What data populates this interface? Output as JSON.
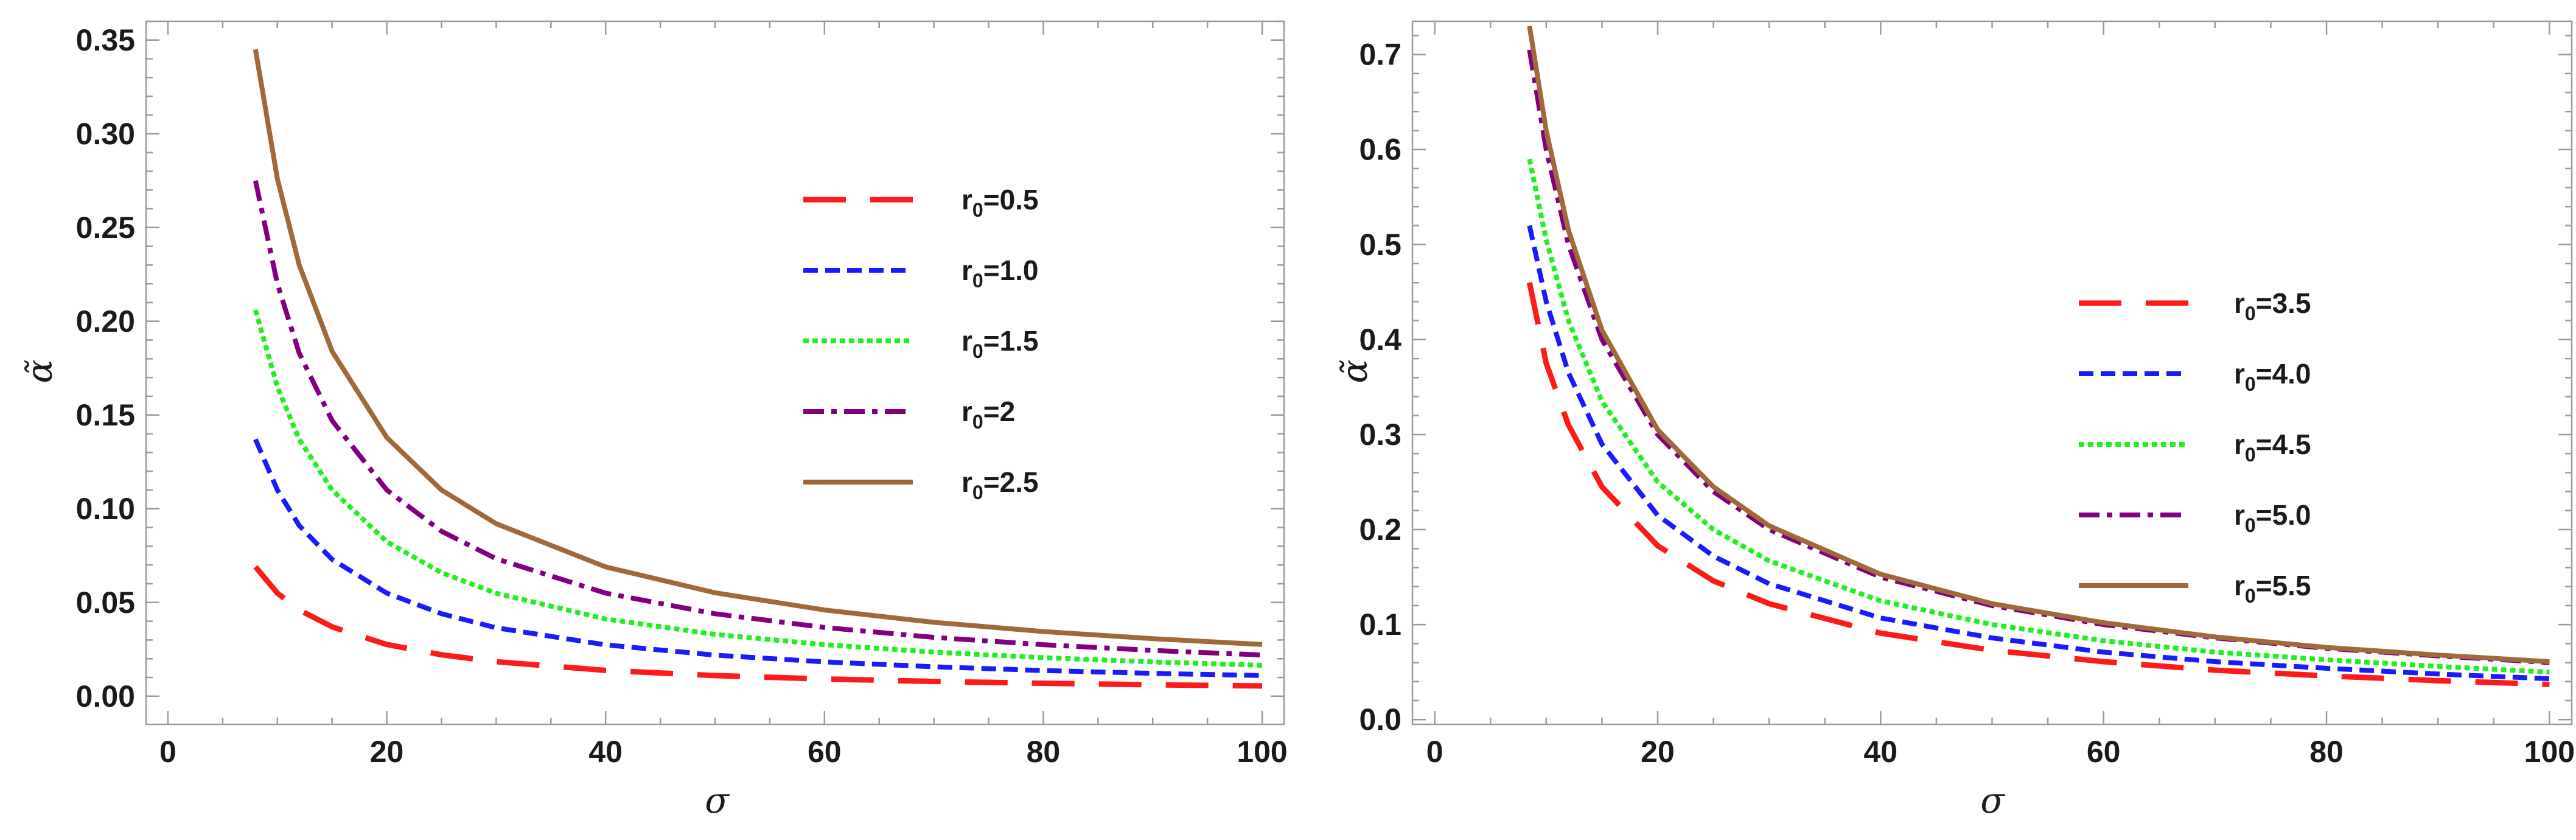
{
  "chart_data": [
    {
      "type": "line",
      "xlabel": "σ",
      "ylabel": "α̃",
      "xlim": [
        -2,
        102
      ],
      "ylim": [
        -0.015,
        0.36
      ],
      "xticks": [
        0,
        20,
        40,
        60,
        80,
        100
      ],
      "xtick_labels": [
        "0",
        "20",
        "40",
        "60",
        "80",
        "100"
      ],
      "yticks": [
        0,
        0.05,
        0.1,
        0.15,
        0.2,
        0.25,
        0.3,
        0.35
      ],
      "ytick_labels": [
        "0.00",
        "0.05",
        "0.10",
        "0.15",
        "0.20",
        "0.25",
        "0.30",
        "0.35"
      ],
      "grid": false,
      "legend_position": "upper-right",
      "x": [
        8,
        10,
        12,
        15,
        20,
        25,
        30,
        40,
        50,
        60,
        70,
        80,
        90,
        100
      ],
      "series": [
        {
          "name_base": "r",
          "name_sub": "0",
          "name_tail": "=0.5",
          "color": "#ff1a1a",
          "dash": "long-dash",
          "values": [
            0.069,
            0.055,
            0.046,
            0.037,
            0.0276,
            0.0221,
            0.0184,
            0.0138,
            0.011,
            0.0092,
            0.0079,
            0.0069,
            0.0061,
            0.0055
          ]
        },
        {
          "name_base": "r",
          "name_sub": "0",
          "name_tail": "=1.0",
          "color": "#1a1aff",
          "dash": "short-dash",
          "values": [
            0.137,
            0.11,
            0.091,
            0.073,
            0.055,
            0.044,
            0.0365,
            0.0274,
            0.0219,
            0.0183,
            0.0157,
            0.0137,
            0.0122,
            0.011
          ]
        },
        {
          "name_base": "r",
          "name_sub": "0",
          "name_tail": "=1.5",
          "color": "#22ee22",
          "dash": "dotted",
          "values": [
            0.206,
            0.165,
            0.137,
            0.11,
            0.0824,
            0.0659,
            0.0549,
            0.0412,
            0.033,
            0.0275,
            0.0235,
            0.0206,
            0.0183,
            0.0165
          ]
        },
        {
          "name_base": "r",
          "name_sub": "0",
          "name_tail": "=2",
          "color": "#800080",
          "dash": "dash-dot",
          "values": [
            0.275,
            0.22,
            0.183,
            0.147,
            0.11,
            0.088,
            0.0733,
            0.055,
            0.044,
            0.0367,
            0.0314,
            0.0275,
            0.0244,
            0.022
          ]
        },
        {
          "name_base": "r",
          "name_sub": "0",
          "name_tail": "=2.5",
          "color": "#a0693a",
          "dash": "solid",
          "values": [
            0.345,
            0.276,
            0.23,
            0.184,
            0.138,
            0.11,
            0.092,
            0.069,
            0.0552,
            0.046,
            0.0394,
            0.0345,
            0.0307,
            0.0276
          ]
        }
      ]
    },
    {
      "type": "line",
      "xlabel": "σ",
      "ylabel": "α̃",
      "xlim": [
        -2,
        102
      ],
      "ylim": [
        -0.005,
        0.735
      ],
      "xticks": [
        0,
        20,
        40,
        60,
        80,
        100
      ],
      "xtick_labels": [
        "0",
        "20",
        "40",
        "60",
        "80",
        "100"
      ],
      "yticks": [
        0,
        0.1,
        0.2,
        0.3,
        0.4,
        0.5,
        0.6,
        0.7
      ],
      "ytick_labels": [
        "0.0",
        "0.1",
        "0.2",
        "0.3",
        "0.4",
        "0.5",
        "0.6",
        "0.7"
      ],
      "grid": false,
      "legend_position": "right",
      "x": [
        8.5,
        10,
        12,
        15,
        20,
        25,
        30,
        40,
        50,
        60,
        70,
        80,
        90,
        100
      ],
      "series": [
        {
          "name_base": "r",
          "name_sub": "0",
          "name_tail": "=3.5",
          "color": "#ff1a1a",
          "dash": "long-dash",
          "values": [
            0.46,
            0.375,
            0.31,
            0.245,
            0.183,
            0.146,
            0.122,
            0.091,
            0.073,
            0.061,
            0.052,
            0.046,
            0.041,
            0.037
          ]
        },
        {
          "name_base": "r",
          "name_sub": "0",
          "name_tail": "=4.0",
          "color": "#1a1aff",
          "dash": "short-dash",
          "values": [
            0.52,
            0.44,
            0.365,
            0.29,
            0.215,
            0.172,
            0.143,
            0.107,
            0.086,
            0.071,
            0.061,
            0.054,
            0.048,
            0.043
          ]
        },
        {
          "name_base": "r",
          "name_sub": "0",
          "name_tail": "=4.5",
          "color": "#22ee22",
          "dash": "dotted",
          "values": [
            0.59,
            0.505,
            0.42,
            0.335,
            0.25,
            0.2,
            0.167,
            0.125,
            0.1,
            0.083,
            0.071,
            0.063,
            0.056,
            0.05
          ]
        },
        {
          "name_base": "r",
          "name_sub": "0",
          "name_tail": "=5.0",
          "color": "#800080",
          "dash": "dash-dot",
          "values": [
            0.705,
            0.6,
            0.5,
            0.4,
            0.3,
            0.24,
            0.2,
            0.15,
            0.12,
            0.1,
            0.086,
            0.075,
            0.067,
            0.06
          ]
        },
        {
          "name_base": "r",
          "name_sub": "0",
          "name_tail": "=5.5",
          "color": "#a0693a",
          "dash": "solid",
          "values": [
            0.73,
            0.62,
            0.515,
            0.41,
            0.305,
            0.245,
            0.204,
            0.153,
            0.122,
            0.102,
            0.087,
            0.076,
            0.068,
            0.061
          ]
        }
      ]
    }
  ]
}
